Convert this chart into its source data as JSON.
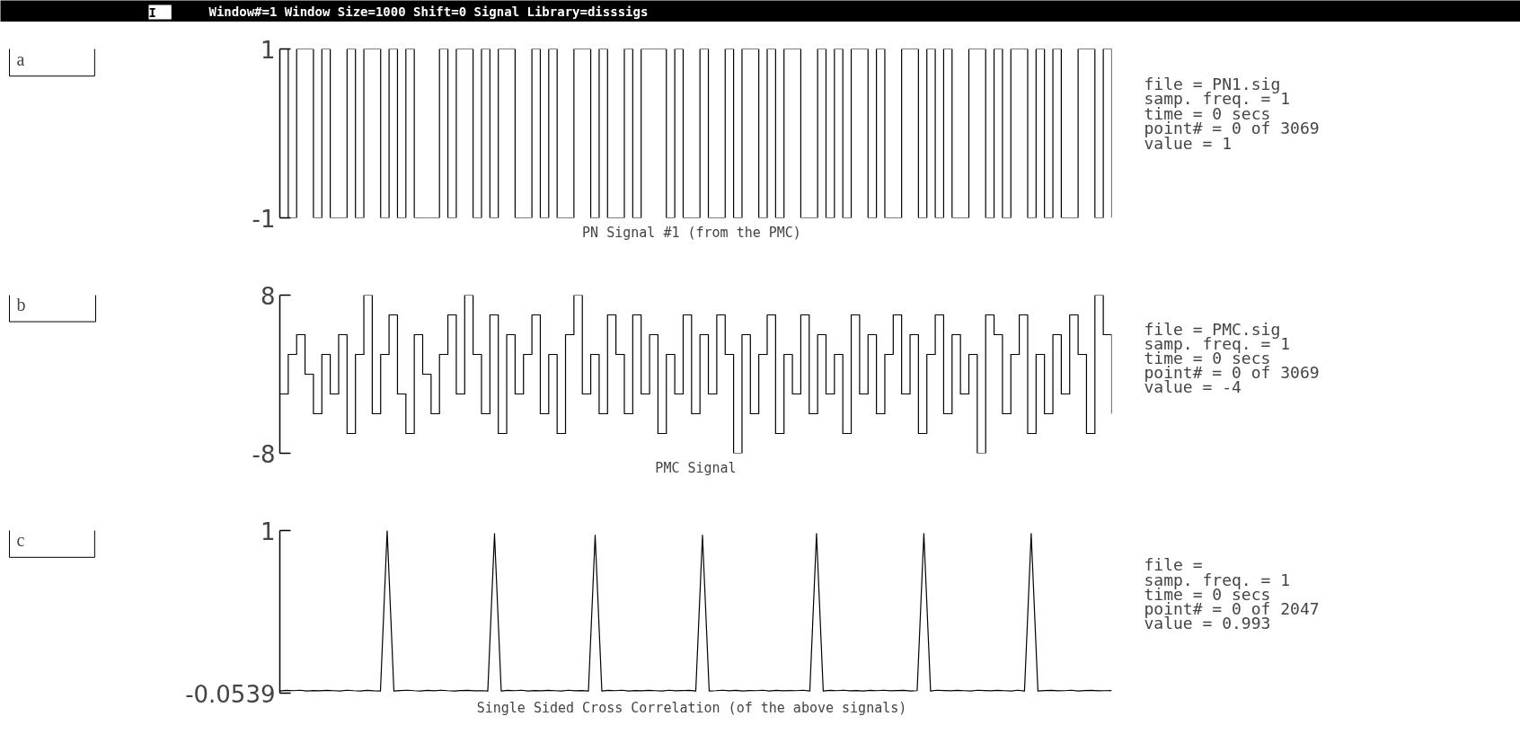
{
  "chart_data": [
    {
      "type": "step",
      "title": "PN Signal #1  (from the PMC)",
      "subtitle": "Window#=1  Window Size=1000  Shift=0  Signal Library=disssigs",
      "annotations": [
        "a",
        "file = PN1.sig",
        "samp. freq. = 1",
        "time    =  0 secs",
        "point# =  0 of 3069",
        "value   =  1",
        "I"
      ],
      "categories": [
        null,
        null,
        null,
        null,
        null,
        null,
        null,
        null,
        null,
        null,
        null,
        null,
        null,
        null,
        null,
        null,
        null,
        null,
        null,
        null,
        null,
        null,
        null,
        null,
        null,
        null,
        null,
        null,
        null,
        null,
        null,
        null,
        null,
        null,
        null,
        null,
        null,
        null,
        null,
        null,
        null,
        null,
        null,
        null,
        null,
        null,
        null,
        null,
        null,
        null,
        null,
        null,
        null,
        null,
        null,
        null,
        null,
        null,
        null,
        null,
        null,
        null,
        null,
        null,
        null,
        null,
        null,
        null,
        null,
        null,
        null,
        null,
        null,
        null,
        null,
        null,
        null,
        null,
        null,
        null,
        null,
        null,
        null,
        null,
        null,
        null,
        null,
        null,
        null,
        null,
        null,
        null,
        null,
        null,
        null,
        null,
        null,
        null,
        null,
        null
      ],
      "values": [
        1,
        -1,
        1,
        1,
        -1,
        1,
        -1,
        -1,
        1,
        -1,
        1,
        1,
        -1,
        1,
        -1,
        1,
        -1,
        -1,
        -1,
        1,
        -1,
        1,
        1,
        -1,
        1,
        -1,
        1,
        1,
        -1,
        -1,
        1,
        -1,
        1,
        -1,
        -1,
        1,
        1,
        -1,
        1,
        -1,
        -1,
        1,
        -1,
        1,
        1,
        1,
        -1,
        1,
        -1,
        -1,
        1,
        -1,
        -1,
        1,
        -1,
        1,
        1,
        -1,
        1,
        -1,
        1,
        1,
        -1,
        -1,
        1,
        -1,
        1,
        -1,
        1,
        1,
        -1,
        1,
        -1,
        -1,
        1,
        1,
        -1,
        1,
        -1,
        1,
        -1,
        -1,
        1,
        1,
        -1,
        1,
        -1,
        1,
        1,
        -1,
        1,
        -1,
        1,
        -1,
        -1,
        1,
        1,
        -1,
        1,
        -1
      ],
      "color": "#000000",
      "ylim": [
        -1,
        1
      ],
      "yticks": [
        1,
        -1
      ],
      "tick_labels": "y",
      "grid": false
    },
    {
      "type": "step",
      "title": "PMC Signal",
      "annotations": [
        "b",
        "file = PMC.sig",
        "samp. freq. = 1",
        "time    =  0 secs",
        "point# =  0 of 3069",
        "value   =  -4"
      ],
      "categories": [
        null,
        null,
        null,
        null,
        null,
        null,
        null,
        null,
        null,
        null,
        null,
        null,
        null,
        null,
        null,
        null,
        null,
        null,
        null,
        null,
        null,
        null,
        null,
        null,
        null,
        null,
        null,
        null,
        null,
        null,
        null,
        null,
        null,
        null,
        null,
        null,
        null,
        null,
        null,
        null,
        null,
        null,
        null,
        null,
        null,
        null,
        null,
        null,
        null,
        null,
        null,
        null,
        null,
        null,
        null,
        null,
        null,
        null,
        null,
        null,
        null,
        null,
        null,
        null,
        null,
        null,
        null,
        null,
        null,
        null,
        null,
        null,
        null,
        null,
        null,
        null,
        null,
        null,
        null,
        null,
        null,
        null,
        null,
        null,
        null,
        null,
        null,
        null,
        null,
        null,
        null,
        null,
        null,
        null,
        null,
        null,
        null,
        null,
        null,
        null
      ],
      "values": [
        -2,
        2,
        4,
        0,
        -4,
        2,
        -2,
        4,
        -6,
        2,
        8,
        -4,
        2,
        6,
        -2,
        -6,
        4,
        0,
        -4,
        2,
        6,
        -2,
        8,
        2,
        -4,
        6,
        -6,
        4,
        -2,
        2,
        6,
        -4,
        2,
        -6,
        4,
        8,
        -2,
        2,
        -4,
        6,
        2,
        -4,
        6,
        -2,
        4,
        -6,
        2,
        -2,
        6,
        -4,
        4,
        -2,
        6,
        2,
        -8,
        4,
        -4,
        2,
        6,
        -6,
        2,
        -2,
        6,
        -4,
        4,
        -2,
        2,
        -6,
        6,
        -2,
        4,
        -4,
        2,
        6,
        -2,
        4,
        -6,
        2,
        6,
        -4,
        4,
        -2,
        2,
        -8,
        6,
        4,
        -4,
        2,
        6,
        -6,
        2,
        -4,
        4,
        -2,
        6,
        2,
        -6,
        8,
        4,
        -4
      ],
      "color": "#000000",
      "ylim": [
        -8,
        8
      ],
      "yticks": [
        8,
        -8
      ],
      "tick_labels": "y",
      "grid": false
    },
    {
      "type": "line",
      "title": "Single Sided Cross Correlation  (of the above signals)",
      "annotations": [
        "c",
        "file =",
        "samp. freq. = 1",
        "time    =  0 secs",
        "point# =  0 of 2047",
        "value   =  0.993"
      ],
      "categories": [
        null,
        null,
        null,
        null,
        null,
        null,
        null,
        null,
        null,
        null,
        null,
        null,
        null,
        null,
        null,
        null,
        null,
        null,
        null,
        null,
        null,
        null,
        null,
        null,
        null,
        null,
        null,
        null,
        null,
        null,
        null,
        null,
        null,
        null,
        null,
        null,
        null,
        null,
        null,
        null,
        null,
        null,
        null,
        null,
        null,
        null,
        null,
        null,
        null,
        null,
        null,
        null,
        null,
        null,
        null,
        null,
        null,
        null,
        null,
        null,
        null,
        null,
        null,
        null,
        null,
        null,
        null,
        null,
        null,
        null,
        null,
        null,
        null,
        null,
        null,
        null,
        null,
        null,
        null,
        null,
        null,
        null,
        null,
        null,
        null,
        null,
        null,
        null,
        null,
        null,
        null,
        null,
        null,
        null,
        null,
        null,
        null,
        null,
        null,
        null,
        null,
        null,
        null,
        null,
        null,
        null,
        null,
        null,
        null,
        null,
        null,
        null,
        null,
        null,
        null,
        null,
        null,
        null,
        null,
        null,
        null,
        null,
        null,
        null,
        null
      ],
      "values": [
        -0.04,
        -0.036,
        -0.038,
        -0.035,
        -0.04,
        -0.037,
        -0.039,
        -0.036,
        -0.038,
        -0.04,
        -0.035,
        -0.038,
        -0.04,
        -0.036,
        -0.039,
        -0.04,
        1,
        -0.04,
        -0.037,
        -0.035,
        -0.038,
        -0.04,
        -0.036,
        -0.039,
        -0.035,
        -0.038,
        -0.04,
        -0.037,
        -0.036,
        -0.039,
        -0.038,
        -0.04,
        0.98,
        -0.04,
        -0.036,
        -0.038,
        -0.035,
        -0.04,
        -0.037,
        -0.039,
        -0.036,
        -0.038,
        -0.04,
        -0.035,
        -0.039,
        -0.037,
        -0.04,
        0.97,
        -0.04,
        -0.036,
        -0.038,
        -0.035,
        -0.04,
        -0.037,
        -0.039,
        -0.036,
        -0.038,
        -0.04,
        -0.035,
        -0.039,
        -0.037,
        -0.036,
        -0.04,
        0.97,
        -0.04,
        -0.038,
        -0.035,
        -0.039,
        -0.036,
        -0.04,
        -0.037,
        -0.038,
        -0.035,
        -0.04,
        -0.036,
        -0.039,
        -0.037,
        -0.038,
        -0.035,
        -0.04,
        0.98,
        -0.04,
        -0.036,
        -0.038,
        -0.035,
        -0.039,
        -0.037,
        -0.04,
        -0.036,
        -0.038,
        -0.035,
        -0.039,
        -0.037,
        -0.036,
        -0.04,
        -0.038,
        0.98,
        -0.04,
        -0.035,
        -0.037,
        -0.039,
        -0.036,
        -0.038,
        -0.04,
        -0.035,
        -0.037,
        -0.039,
        -0.036,
        -0.038,
        -0.04,
        -0.035,
        -0.04,
        0.98,
        -0.04,
        -0.037,
        -0.036,
        -0.039,
        -0.038,
        -0.035,
        -0.04,
        -0.037,
        -0.036,
        -0.039,
        -0.038,
        -0.037
      ],
      "color": "#000000",
      "ylim": [
        -0.0539,
        1
      ],
      "yticks": [
        1,
        -0.0539
      ],
      "tick_labels": "y",
      "grid": false
    }
  ]
}
